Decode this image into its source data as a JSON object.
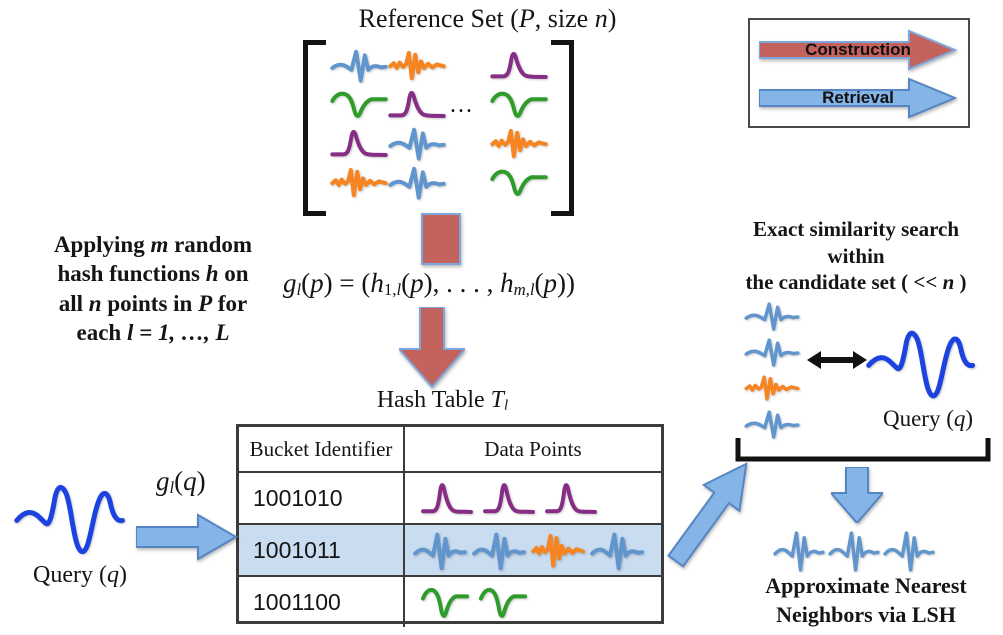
{
  "colors": {
    "construction_fill": "#C4625D",
    "arrow_border_light": "#7DA7DC",
    "retrieval_fill": "#85B4E6",
    "retrieval_border": "#5585C2",
    "highlight_row": "#C9DCF0",
    "table_border": "#3C3C3C",
    "legend_border": "#4A4A4A",
    "wave_blue": "#6096CD",
    "wave_query_blue": "#1C43DF",
    "wave_purple": "#862D86",
    "wave_green": "#2E9B2A",
    "wave_orange": "#F68420",
    "text": "#151515"
  },
  "reference_set": {
    "title": [
      {
        "t": "Reference Set ("
      },
      {
        "t": "P",
        "i": 1
      },
      {
        "t": ", size "
      },
      {
        "t": "n",
        "i": 1
      },
      {
        "t": ")"
      }
    ],
    "ellipsis": "...",
    "grid": [
      [
        {
          "shape": "ecg",
          "color": "wave_blue"
        },
        {
          "shape": "noisy",
          "color": "wave_orange"
        },
        {
          "shape": "peak",
          "color": "wave_purple"
        }
      ],
      [
        {
          "shape": "greenwave",
          "color": "wave_green"
        },
        {
          "shape": "peak",
          "color": "wave_purple"
        },
        {
          "shape": "greenwave",
          "color": "wave_green"
        }
      ],
      [
        {
          "shape": "peak",
          "color": "wave_purple"
        },
        {
          "shape": "ecg",
          "color": "wave_blue"
        },
        {
          "shape": "noisy",
          "color": "wave_orange"
        }
      ],
      [
        {
          "shape": "noisy",
          "color": "wave_orange"
        },
        {
          "shape": "ecg",
          "color": "wave_blue"
        },
        {
          "shape": "greenwave",
          "color": "wave_green"
        }
      ]
    ]
  },
  "legend": {
    "construction_label": "Construction",
    "retrieval_label": "Retrieval"
  },
  "left_note": {
    "lines": [
      [
        {
          "t": "Applying "
        },
        {
          "t": "m",
          "i": 1
        },
        {
          "t": " random"
        }
      ],
      [
        {
          "t": "hash functions "
        },
        {
          "t": "h",
          "i": 1
        },
        {
          "t": " on"
        }
      ],
      [
        {
          "t": "all "
        },
        {
          "t": "n",
          "i": 1
        },
        {
          "t": " points in "
        },
        {
          "t": "P",
          "i": 1
        },
        {
          "t": " for"
        }
      ],
      [
        {
          "t": "each "
        },
        {
          "t": "l",
          "i": 1
        },
        {
          "t": " = 1, …, ",
          "i": 1
        },
        {
          "t": "L",
          "i": 1
        }
      ]
    ]
  },
  "formula": [
    {
      "t": "g",
      "i": 1
    },
    {
      "t": "l",
      "i": 1,
      "sub": 1
    },
    {
      "t": "("
    },
    {
      "t": "p",
      "i": 1
    },
    {
      "t": ") = ("
    },
    {
      "t": "h",
      "i": 1
    },
    {
      "t": "1,",
      "sub": 1
    },
    {
      "t": "l",
      "i": 1,
      "sub": 1
    },
    {
      "t": "("
    },
    {
      "t": "p",
      "i": 1
    },
    {
      "t": "), . . . , "
    },
    {
      "t": "h",
      "i": 1
    },
    {
      "t": "m,",
      "i": 1,
      "sub": 1
    },
    {
      "t": "l",
      "i": 1,
      "sub": 1
    },
    {
      "t": "("
    },
    {
      "t": "p",
      "i": 1
    },
    {
      "t": "))"
    }
  ],
  "hash_table": {
    "title": [
      {
        "t": "Hash Table "
      },
      {
        "t": "T",
        "i": 1
      },
      {
        "t": "l",
        "i": 1,
        "sub": 1
      }
    ],
    "headers": [
      "Bucket Identifier",
      "Data Points"
    ],
    "rows": [
      {
        "bucket": "1001010",
        "highlighted": false,
        "waves": [
          {
            "shape": "peak",
            "color": "wave_purple"
          },
          {
            "shape": "peak",
            "color": "wave_purple"
          },
          {
            "shape": "peak",
            "color": "wave_purple"
          }
        ]
      },
      {
        "bucket": "1001011",
        "highlighted": true,
        "waves": [
          {
            "shape": "ecg",
            "color": "wave_blue"
          },
          {
            "shape": "ecg",
            "color": "wave_blue"
          },
          {
            "shape": "noisy",
            "color": "wave_orange"
          },
          {
            "shape": "ecg",
            "color": "wave_blue"
          }
        ]
      },
      {
        "bucket": "1001100",
        "highlighted": false,
        "waves": [
          {
            "shape": "greenwave",
            "color": "wave_green"
          },
          {
            "shape": "greenwave",
            "color": "wave_green"
          }
        ]
      }
    ]
  },
  "query": {
    "label": [
      {
        "t": "Query ("
      },
      {
        "t": "q",
        "i": 1
      },
      {
        "t": ")"
      }
    ],
    "hash_label": [
      {
        "t": "g",
        "i": 1
      },
      {
        "t": "l",
        "i": 1,
        "sub": 1
      },
      {
        "t": "("
      },
      {
        "t": "q",
        "i": 1
      },
      {
        "t": ")"
      }
    ],
    "wave": {
      "shape": "querybold",
      "color": "wave_query_blue"
    }
  },
  "candidate_search": {
    "title_lines": [
      [
        {
          "t": "Exact similarity search"
        }
      ],
      [
        {
          "t": "within"
        }
      ],
      [
        {
          "t": "the candidate set ( << "
        },
        {
          "t": "n",
          "i": 1
        },
        {
          "t": " )"
        }
      ]
    ],
    "stack": [
      {
        "shape": "ecg",
        "color": "wave_blue"
      },
      {
        "shape": "ecg",
        "color": "wave_blue"
      },
      {
        "shape": "noisy",
        "color": "wave_orange"
      },
      {
        "shape": "ecg",
        "color": "wave_blue"
      }
    ],
    "query_label": [
      {
        "t": "Query ("
      },
      {
        "t": "q",
        "i": 1
      },
      {
        "t": ")"
      }
    ],
    "query_wave": {
      "shape": "querybold",
      "color": "wave_query_blue"
    }
  },
  "ann": {
    "waves": [
      {
        "shape": "ecg",
        "color": "wave_blue"
      },
      {
        "shape": "ecg",
        "color": "wave_blue"
      },
      {
        "shape": "ecg",
        "color": "wave_blue"
      }
    ],
    "label_lines": [
      "Approximate Nearest",
      "Neighbors via LSH"
    ]
  }
}
